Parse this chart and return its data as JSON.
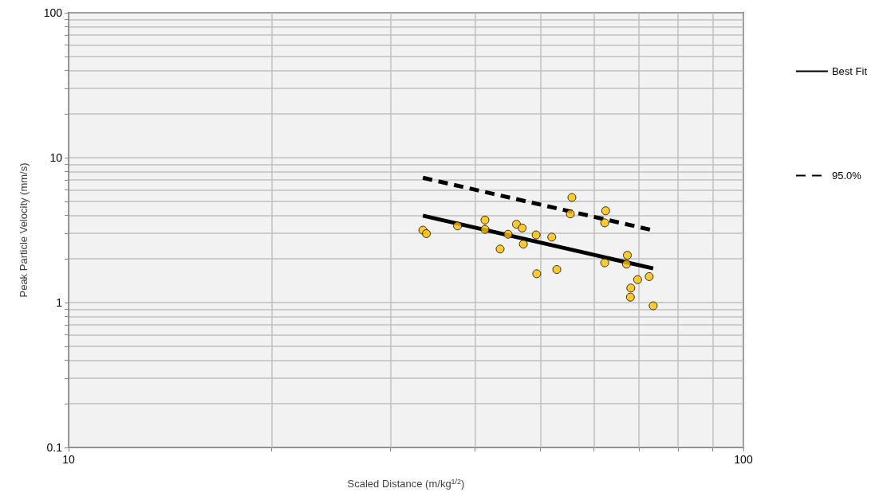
{
  "chart_data": {
    "type": "scatter",
    "xlabel": "Scaled Distance (m/kg$^{1/2}$)",
    "ylabel": "Peak Particle Velocity (mm/s)",
    "log": "xy",
    "grid": true,
    "legend": "right",
    "xlim": [
      10,
      100
    ],
    "ylim": [
      0.1,
      100
    ],
    "xticks": [
      10,
      {
        "value": 20,
        "label": null
      },
      {
        "value": 30,
        "label": null
      },
      {
        "value": 40,
        "label": null
      },
      {
        "value": 50,
        "label": null
      },
      {
        "value": 60,
        "label": null
      },
      {
        "value": 70,
        "label": null
      },
      {
        "value": 80,
        "label": null
      },
      {
        "value": 90,
        "label": null
      },
      100
    ],
    "yticks": [
      0.1,
      {
        "value": 0.2,
        "label": null
      },
      {
        "value": 0.3,
        "label": null
      },
      {
        "value": 0.4,
        "label": null
      },
      {
        "value": 0.5,
        "label": null
      },
      {
        "value": 0.6,
        "label": null
      },
      {
        "value": 0.7,
        "label": null
      },
      {
        "value": 0.8,
        "label": null
      },
      {
        "value": 0.9,
        "label": null
      },
      1,
      {
        "value": 2,
        "label": null
      },
      {
        "value": 3,
        "label": null
      },
      {
        "value": 4,
        "label": null
      },
      {
        "value": 5,
        "label": null
      },
      {
        "value": 6,
        "label": null
      },
      {
        "value": 7,
        "label": null
      },
      {
        "value": 8,
        "label": null
      },
      {
        "value": 9,
        "label": null
      },
      10,
      {
        "value": 20,
        "label": null
      },
      {
        "value": 30,
        "label": null
      },
      {
        "value": 40,
        "label": null
      },
      {
        "value": 50,
        "label": null
      },
      {
        "value": 60,
        "label": null
      },
      {
        "value": 70,
        "label": null
      },
      {
        "value": 80,
        "label": null
      },
      {
        "value": 90,
        "label": null
      },
      100
    ],
    "series": [
      {
        "color": "#ffc000",
        "marker": "circle",
        "x": [
          33.5,
          33.9,
          37.7,
          41.4,
          41.4,
          43.6,
          44.8,
          46.1,
          47.0,
          47.2,
          49.3,
          49.4,
          52.0,
          52.9,
          55.7,
          55.4,
          62.5,
          62.3,
          62.3,
          67.3,
          67.1,
          69.7,
          68.1,
          68.0,
          72.5,
          73.5
        ],
        "values": [
          3.16,
          2.99,
          3.38,
          3.71,
          3.2,
          2.34,
          2.96,
          3.47,
          3.27,
          2.53,
          2.93,
          1.58,
          2.83,
          1.69,
          5.31,
          4.09,
          4.3,
          3.55,
          1.88,
          2.12,
          1.84,
          1.44,
          1.26,
          1.09,
          1.51,
          0.95
        ]
      },
      {
        "type": "line",
        "name": "Best Fit",
        "color": "#000000",
        "line_style": "solid",
        "marker": "none",
        "x": [
          33.5,
          73.5
        ],
        "values": [
          3.98,
          1.72
        ]
      },
      {
        "type": "line",
        "name": "95.0%",
        "color": "#000000",
        "line_style": "dashed",
        "marker": "none",
        "x": [
          33.5,
          73.5
        ],
        "values": [
          7.26,
          3.15
        ]
      }
    ]
  }
}
